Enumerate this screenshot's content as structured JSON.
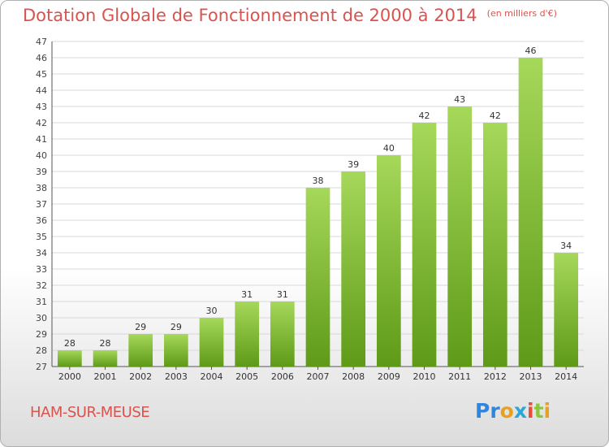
{
  "header": {
    "title": "Dotation Globale de Fonctionnement de 2000 à 2014",
    "unit": "(en milliers d'€)"
  },
  "footer": {
    "commune": "HAM-SUR-MEUSE",
    "logo": [
      "Pr",
      "o",
      "x",
      "i",
      "t",
      "i"
    ]
  },
  "colors": {
    "title": "#d9534f",
    "bar_light": "#a6d85a",
    "bar_dark": "#5e9a18",
    "grid": "#d8d8d8"
  },
  "chart_data": {
    "type": "bar",
    "title": "Dotation Globale de Fonctionnement de 2000 à 2014",
    "ylabel": "",
    "xlabel": "",
    "ylim": [
      27,
      47
    ],
    "yticks": [
      27,
      28,
      29,
      30,
      31,
      32,
      33,
      34,
      35,
      36,
      37,
      38,
      39,
      40,
      41,
      42,
      43,
      44,
      45,
      46,
      47
    ],
    "grid": true,
    "categories": [
      "2000",
      "2001",
      "2002",
      "2003",
      "2004",
      "2005",
      "2006",
      "2007",
      "2008",
      "2009",
      "2010",
      "2011",
      "2012",
      "2013",
      "2014"
    ],
    "values": [
      28,
      28,
      29,
      29,
      30,
      31,
      31,
      38,
      39,
      40,
      42,
      43,
      42,
      46,
      34
    ]
  }
}
